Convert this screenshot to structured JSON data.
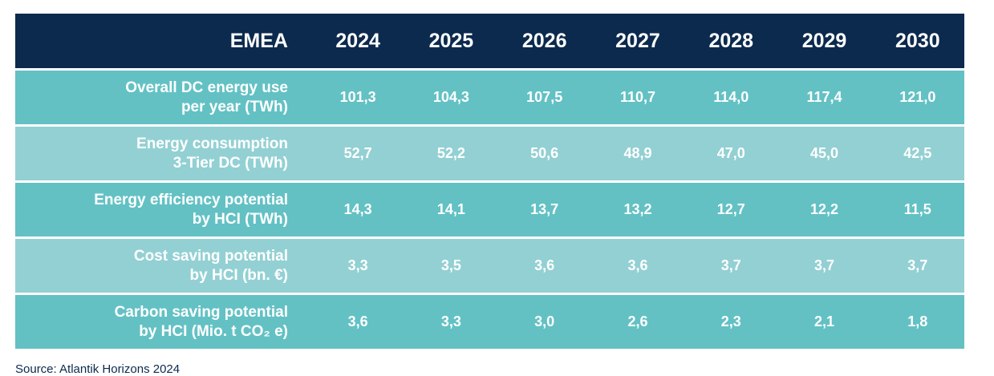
{
  "table": {
    "header_label": "EMEA",
    "years": [
      "2024",
      "2025",
      "2026",
      "2027",
      "2028",
      "2029",
      "2030"
    ],
    "rows": [
      {
        "label_line1": "Overall DC energy use",
        "label_line2": "per year (TWh)",
        "values": [
          "101,3",
          "104,3",
          "107,5",
          "110,7",
          "114,0",
          "117,4",
          "121,0"
        ]
      },
      {
        "label_line1": "Energy consumption",
        "label_line2": "3-Tier DC (TWh)",
        "values": [
          "52,7",
          "52,2",
          "50,6",
          "48,9",
          "47,0",
          "45,0",
          "42,5"
        ]
      },
      {
        "label_line1": "Energy efficiency potential",
        "label_line2": "by HCI (TWh)",
        "values": [
          "14,3",
          "14,1",
          "13,7",
          "13,2",
          "12,7",
          "12,2",
          "11,5"
        ]
      },
      {
        "label_line1": "Cost saving potential",
        "label_line2": "by HCI (bn. €)",
        "values": [
          "3,3",
          "3,5",
          "3,6",
          "3,6",
          "3,7",
          "3,7",
          "3,7"
        ]
      },
      {
        "label_line1": "Carbon saving potential",
        "label_line2": "by HCI (Mio. t CO₂ e)",
        "values": [
          "3,6",
          "3,3",
          "3,0",
          "2,6",
          "2,3",
          "2,1",
          "1,8"
        ]
      }
    ]
  },
  "source": "Source: Atlantik Horizons 2024"
}
